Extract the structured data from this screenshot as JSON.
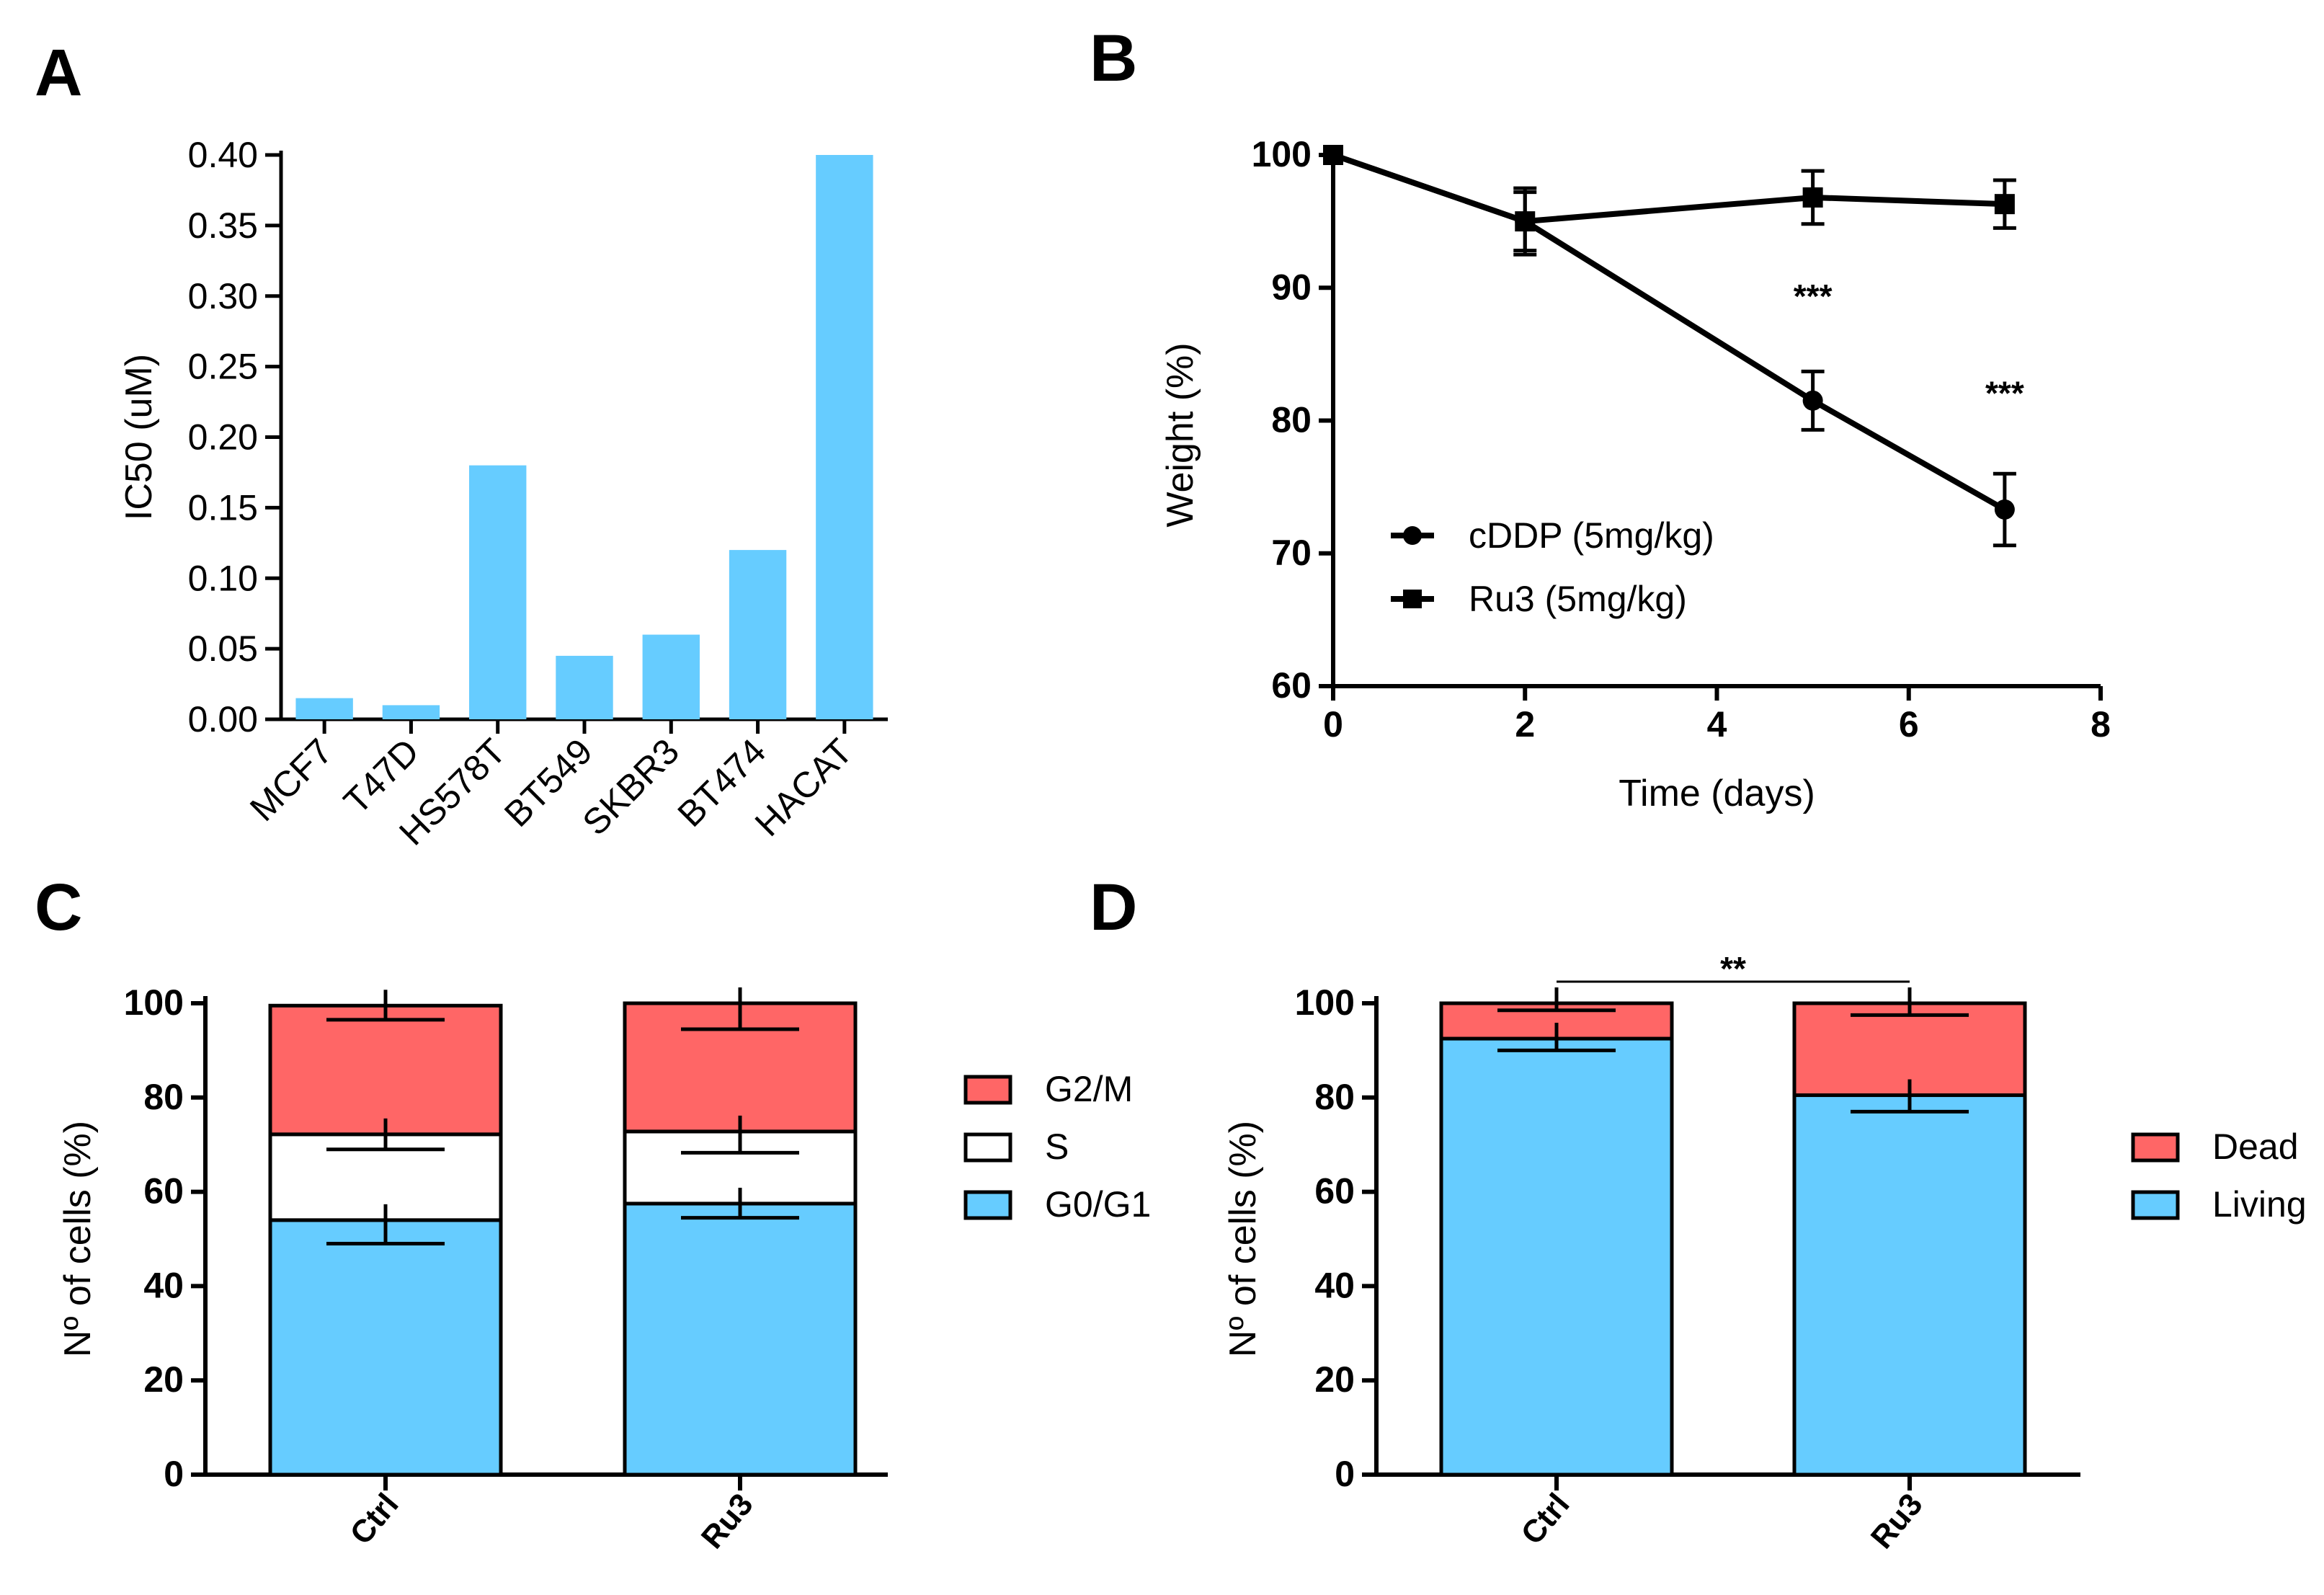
{
  "panels": {
    "A": {
      "letter": "A"
    },
    "B": {
      "letter": "B"
    },
    "C": {
      "letter": "C"
    },
    "D": {
      "letter": "D"
    }
  },
  "chart_data": [
    {
      "panel": "A",
      "type": "bar",
      "title": "",
      "xlabel": "",
      "ylabel": "IC50 (uM)",
      "ylim": [
        0,
        0.4
      ],
      "yticks": [
        "0.00",
        "0.05",
        "0.10",
        "0.15",
        "0.20",
        "0.25",
        "0.30",
        "0.35",
        "0.40"
      ],
      "categories": [
        "MCF7",
        "T47D",
        "HS578T",
        "BT549",
        "SKBR3",
        "BT474",
        "HACAT"
      ],
      "values": [
        0.015,
        0.01,
        0.18,
        0.045,
        0.06,
        0.12,
        0.4
      ],
      "color": "#66CCFF"
    },
    {
      "panel": "B",
      "type": "line",
      "title": "",
      "xlabel": "Time (days)",
      "ylabel": "Weight (%)",
      "xlim": [
        0,
        8
      ],
      "ylim": [
        60,
        100
      ],
      "xticks": [
        "0",
        "2",
        "4",
        "6",
        "8"
      ],
      "yticks": [
        "60",
        "70",
        "80",
        "90",
        "100"
      ],
      "series": [
        {
          "name": "cDDP (5mg/kg)",
          "marker": "circle",
          "x": [
            0,
            2,
            5,
            7
          ],
          "y": [
            100,
            95,
            81.5,
            73.3
          ],
          "err": [
            0,
            2.5,
            2.2,
            2.7
          ]
        },
        {
          "name": "Ru3 (5mg/kg)",
          "marker": "square",
          "x": [
            0,
            2,
            5,
            7
          ],
          "y": [
            100,
            95,
            96.8,
            96.3
          ],
          "err": [
            0,
            2.2,
            2.0,
            1.8
          ]
        }
      ],
      "annotations": [
        {
          "text": "***",
          "x": 5,
          "y": 88.5
        },
        {
          "text": "***",
          "x": 7,
          "y": 81.2
        }
      ],
      "legend": "bottom-left"
    },
    {
      "panel": "C",
      "type": "bar",
      "stacked": true,
      "title": "",
      "xlabel": "",
      "ylabel": "Nº of cells (%)",
      "ylim": [
        0,
        100
      ],
      "yticks": [
        "0",
        "20",
        "40",
        "60",
        "80",
        "100"
      ],
      "categories": [
        "Ctrl",
        "Ru3"
      ],
      "series": [
        {
          "name": "G0/G1",
          "color": "#66CCFF",
          "values": [
            54,
            57.5
          ],
          "err": [
            5,
            3
          ]
        },
        {
          "name": "S",
          "color": "#FFFFFF",
          "values": [
            18.2,
            15.3
          ],
          "err": [
            3.2,
            4.5
          ]
        },
        {
          "name": "G2/M",
          "color": "#FF6666",
          "values": [
            27.3,
            27.2
          ],
          "err": [
            3,
            5.5
          ]
        }
      ],
      "legend": "right"
    },
    {
      "panel": "D",
      "type": "bar",
      "stacked": true,
      "title": "",
      "xlabel": "",
      "ylabel": "Nº of cells (%)",
      "ylim": [
        0,
        100
      ],
      "yticks": [
        "0",
        "20",
        "40",
        "60",
        "80",
        "100"
      ],
      "categories": [
        "Ctrl",
        "Ru3"
      ],
      "series": [
        {
          "name": "Living",
          "color": "#66CCFF",
          "values": [
            92.5,
            80.5
          ],
          "err": [
            2.5,
            3.5
          ]
        },
        {
          "name": "Dead",
          "color": "#FF6666",
          "values": [
            7.5,
            19.5
          ],
          "err": [
            1.5,
            2.5
          ]
        }
      ],
      "significance": "**",
      "legend": "right"
    }
  ]
}
